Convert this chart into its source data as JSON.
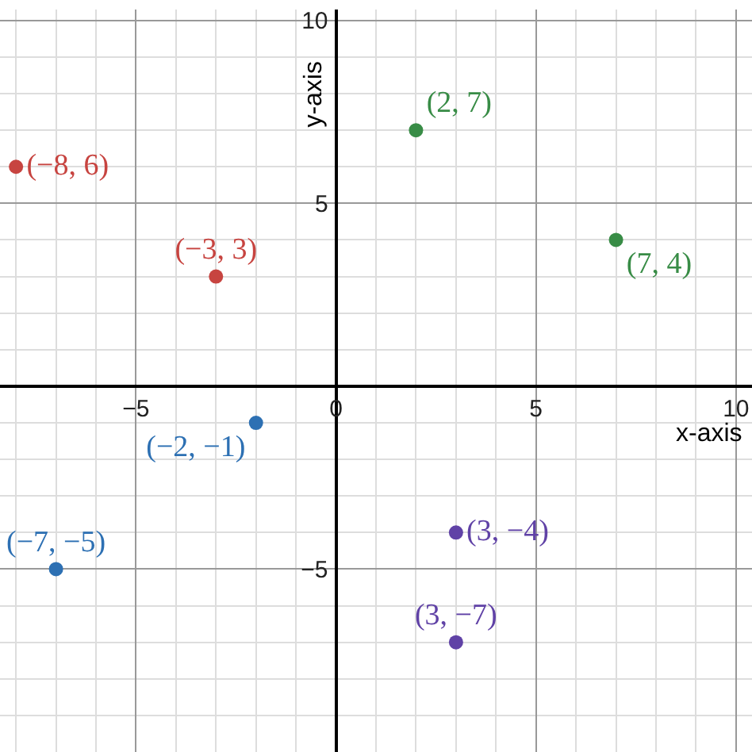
{
  "chart_data": {
    "type": "scatter",
    "xlabel": "x-axis",
    "ylabel": "y-axis",
    "xlim": [
      -8.4,
      10.4
    ],
    "ylim": [
      -10,
      10.3
    ],
    "xticks": [
      -5,
      0,
      5,
      10
    ],
    "yticks": [
      -5,
      5,
      10
    ],
    "grid": true,
    "marker": "circle",
    "series": [
      {
        "color": "#c74440",
        "x": [
          -8,
          -3
        ],
        "values": [
          6,
          3
        ],
        "value_labels": [
          "(−8, 6)",
          "(−3, 3)"
        ]
      },
      {
        "color": "#388c46",
        "x": [
          2,
          7
        ],
        "values": [
          7,
          4
        ],
        "value_labels": [
          "(2, 7)",
          "(7, 4)"
        ]
      },
      {
        "color": "#2d70b3",
        "x": [
          -2,
          -7
        ],
        "values": [
          -1,
          -5
        ],
        "value_labels": [
          "(−2, −1)",
          "(−7, −5)"
        ]
      },
      {
        "color": "#6042a6",
        "x": [
          3,
          3
        ],
        "values": [
          -4,
          -7
        ],
        "value_labels": [
          "(3, −4)",
          "(3, −7)"
        ]
      }
    ]
  }
}
